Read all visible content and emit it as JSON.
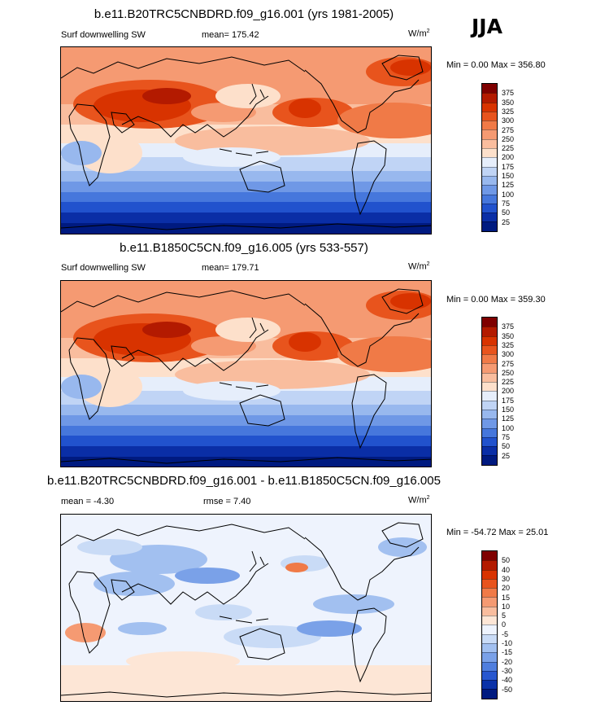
{
  "season": "JJA",
  "panels": [
    {
      "title": "b.e11.B20TRC5CNBDRD.f09_g16.001 (yrs 1981-2005)",
      "left_label": "Surf downwelling SW",
      "mean_text": "mean= 175.42",
      "units_base": "W/m",
      "units_exp": "2",
      "minmax": "Min =   0.00 Max = 356.80"
    },
    {
      "title": "b.e11.B1850C5CN.f09_g16.005 (yrs 533-557)",
      "left_label": "Surf downwelling SW",
      "mean_text": "mean= 179.71",
      "units_base": "W/m",
      "units_exp": "2",
      "minmax": "Min =   0.00 Max = 359.30"
    },
    {
      "title": "b.e11.B20TRC5CNBDRD.f09_g16.001 - b.e11.B1850C5CN.f09_g16.005",
      "left_label": "mean =  -4.30",
      "mean_text": "rmse =   7.40",
      "units_base": "W/m",
      "units_exp": "2",
      "minmax": "Min = -54.72 Max =  25.01"
    }
  ],
  "chart_data": [
    {
      "type": "heatmap",
      "variable": "Surf downwelling SW",
      "title": "b.e11.B20TRC5CNBDRD.f09_g16.001 (yrs 1981-2005)",
      "units": "W/m2",
      "mean": 175.42,
      "min": 0.0,
      "max": 356.8,
      "colorbar_levels": [
        25,
        50,
        75,
        100,
        125,
        150,
        175,
        200,
        225,
        250,
        275,
        300,
        325,
        350,
        375
      ],
      "colorbar_labels": [
        "375",
        "350",
        "325",
        "300",
        "275",
        "250",
        "225",
        "200",
        "175",
        "150",
        "125",
        "100",
        "75",
        "50",
        "25"
      ],
      "colors_top_to_bottom": [
        "#7f0000",
        "#b31a00",
        "#d83300",
        "#e8541d",
        "#f07a47",
        "#f59a72",
        "#f9bd9e",
        "#fde0cb",
        "#e6eefb",
        "#c0d4f5",
        "#98b8ee",
        "#6f98e6",
        "#4677dc",
        "#2152cd",
        "#0a2ea6",
        "#001a80"
      ],
      "grid": false
    },
    {
      "type": "heatmap",
      "variable": "Surf downwelling SW",
      "title": "b.e11.B1850C5CN.f09_g16.005 (yrs 533-557)",
      "units": "W/m2",
      "mean": 179.71,
      "min": 0.0,
      "max": 359.3,
      "colorbar_levels": [
        25,
        50,
        75,
        100,
        125,
        150,
        175,
        200,
        225,
        250,
        275,
        300,
        325,
        350,
        375
      ],
      "colorbar_labels": [
        "375",
        "350",
        "325",
        "300",
        "275",
        "250",
        "225",
        "200",
        "175",
        "150",
        "125",
        "100",
        "75",
        "50",
        "25"
      ],
      "colors_top_to_bottom": [
        "#7f0000",
        "#b31a00",
        "#d83300",
        "#e8541d",
        "#f07a47",
        "#f59a72",
        "#f9bd9e",
        "#fde0cb",
        "#e6eefb",
        "#c0d4f5",
        "#98b8ee",
        "#6f98e6",
        "#4677dc",
        "#2152cd",
        "#0a2ea6",
        "#001a80"
      ],
      "grid": false
    },
    {
      "type": "heatmap",
      "variable": "difference",
      "title": "b.e11.B20TRC5CNBDRD.f09_g16.001 - b.e11.B1850C5CN.f09_g16.005",
      "units": "W/m2",
      "mean": -4.3,
      "rmse": 7.4,
      "min": -54.72,
      "max": 25.01,
      "colorbar_levels": [
        -50,
        -40,
        -30,
        -20,
        -15,
        -10,
        -5,
        0,
        5,
        10,
        15,
        20,
        30,
        40,
        50
      ],
      "colorbar_labels": [
        "50",
        "40",
        "30",
        "20",
        "15",
        "10",
        "5",
        "0",
        "-5",
        "-10",
        "-15",
        "-20",
        "-30",
        "-40",
        "-50"
      ],
      "colors_top_to_bottom": [
        "#7f0000",
        "#b31a00",
        "#d83300",
        "#e8541d",
        "#f07a47",
        "#f59a72",
        "#f9bd9e",
        "#fde6d6",
        "#eef3fd",
        "#c9dbf6",
        "#a2c0f0",
        "#7aa1e8",
        "#4f7ede",
        "#2857cf",
        "#0b32a8",
        "#001a80"
      ],
      "grid": false
    }
  ]
}
